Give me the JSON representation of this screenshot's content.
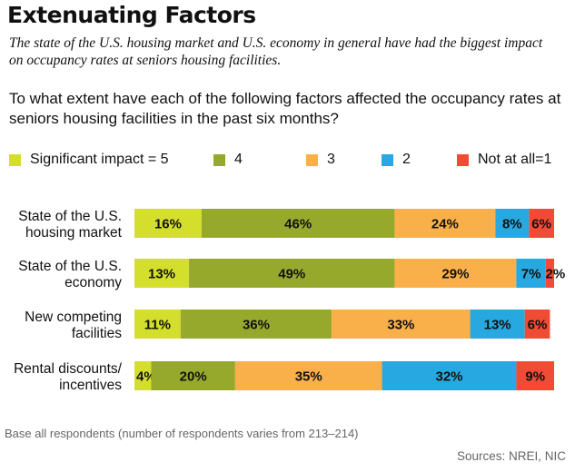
{
  "header": {
    "title": "Extenuating Factors",
    "subtitle": "The state of the U.S. housing market and U.S. economy in general have had the biggest impact on occupancy rates at seniors housing facilities.",
    "question": "To what extent have each of the following factors affected the occupancy rates at seniors housing facilities in the past six months?"
  },
  "legend": [
    {
      "label": "Significant impact = 5",
      "color": "#d4de2c"
    },
    {
      "label": "4",
      "color": "#97a92d"
    },
    {
      "label": "3",
      "color": "#f9b04a"
    },
    {
      "label": "2",
      "color": "#27a8e0"
    },
    {
      "label": "Not at all=1",
      "color": "#ef4b35"
    }
  ],
  "chart_data": {
    "type": "bar",
    "orientation": "horizontal",
    "stacked": true,
    "categories": [
      [
        "State of the U.S.",
        "housing market"
      ],
      [
        "State of the U.S.",
        "economy"
      ],
      [
        "New competing",
        "facilities"
      ],
      [
        "Rental discounts/",
        "incentives"
      ]
    ],
    "series": [
      {
        "name": "Significant impact = 5",
        "color": "#d4de2c",
        "values": [
          16,
          13,
          11,
          4
        ],
        "labels": [
          "16%",
          "13%",
          "11%",
          "4%"
        ]
      },
      {
        "name": "4",
        "color": "#97a92d",
        "values": [
          46,
          49,
          36,
          20
        ],
        "labels": [
          "46%",
          "49%",
          "36%",
          "20%"
        ]
      },
      {
        "name": "3",
        "color": "#f9b04a",
        "values": [
          24,
          29,
          33,
          35
        ],
        "labels": [
          "24%",
          "29%",
          "33%",
          "35%"
        ]
      },
      {
        "name": "2",
        "color": "#27a8e0",
        "values": [
          8,
          7,
          13,
          32
        ],
        "labels": [
          "8%",
          "7%",
          "13%",
          "32%"
        ]
      },
      {
        "name": "Not at all=1",
        "color": "#ef4b35",
        "values": [
          6,
          2,
          6,
          9
        ],
        "labels": [
          "6%",
          "2%",
          "6%",
          "9%"
        ]
      }
    ],
    "xlim": [
      0,
      100
    ],
    "grid": false,
    "legend_position": "top"
  },
  "footer": {
    "note": "Base all respondents (number of respondents varies from 213–214)",
    "sources": "Sources: NREI, NIC"
  }
}
